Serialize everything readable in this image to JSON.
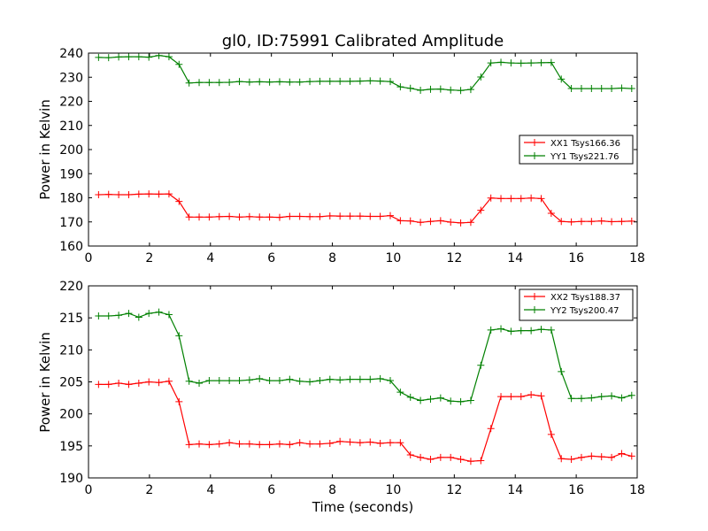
{
  "chart_data": [
    {
      "type": "line",
      "title": "gl0, ID:75991 Calibrated Amplitude",
      "xlabel": "",
      "ylabel": "Power in Kelvin",
      "xlim": [
        0,
        18
      ],
      "ylim": [
        160,
        240
      ],
      "xticks": [
        0,
        2,
        4,
        6,
        8,
        10,
        12,
        14,
        16,
        18
      ],
      "yticks": [
        160,
        170,
        180,
        190,
        200,
        210,
        220,
        230,
        240
      ],
      "legend_position": "center-right",
      "x": [
        0.33,
        0.66,
        0.99,
        1.32,
        1.65,
        1.98,
        2.31,
        2.64,
        2.97,
        3.3,
        3.63,
        3.96,
        4.29,
        4.62,
        4.95,
        5.28,
        5.61,
        5.94,
        6.27,
        6.6,
        6.93,
        7.26,
        7.59,
        7.92,
        8.25,
        8.58,
        8.91,
        9.24,
        9.57,
        9.9,
        10.23,
        10.56,
        10.89,
        11.22,
        11.55,
        11.88,
        12.21,
        12.54,
        12.87,
        13.2,
        13.53,
        13.86,
        14.19,
        14.52,
        14.85,
        15.18,
        15.51,
        15.84,
        16.17,
        16.5,
        16.83,
        17.16,
        17.49,
        17.82
      ],
      "series": [
        {
          "name": "XX1 Tsys166.36",
          "color": "#ff0000",
          "values": [
            181.3,
            181.4,
            181.3,
            181.3,
            181.5,
            181.6,
            181.5,
            181.6,
            178.5,
            172.0,
            172.0,
            172.0,
            172.2,
            172.3,
            172.0,
            172.2,
            172.0,
            172.0,
            171.9,
            172.3,
            172.3,
            172.2,
            172.2,
            172.5,
            172.4,
            172.4,
            172.4,
            172.3,
            172.3,
            172.6,
            170.5,
            170.4,
            169.8,
            170.2,
            170.5,
            169.9,
            169.6,
            169.8,
            174.8,
            179.9,
            179.7,
            179.7,
            179.7,
            179.9,
            179.7,
            173.6,
            170.2,
            170.0,
            170.2,
            170.2,
            170.4,
            170.1,
            170.2,
            170.3
          ]
        },
        {
          "name": "YY1 Tsys221.76",
          "color": "#008000",
          "values": [
            238.2,
            238.1,
            238.4,
            238.5,
            238.5,
            238.3,
            239.0,
            238.5,
            235.3,
            227.6,
            227.8,
            227.8,
            227.8,
            227.9,
            228.2,
            228.0,
            228.1,
            228.0,
            228.1,
            228.0,
            228.0,
            228.2,
            228.3,
            228.3,
            228.3,
            228.3,
            228.4,
            228.5,
            228.4,
            228.2,
            226.0,
            225.4,
            224.6,
            225.0,
            225.1,
            224.7,
            224.5,
            224.9,
            230.1,
            235.9,
            236.2,
            235.9,
            235.8,
            235.9,
            236.0,
            236.1,
            229.2,
            225.3,
            225.3,
            225.3,
            225.3,
            225.3,
            225.5,
            225.3
          ]
        }
      ]
    },
    {
      "type": "line",
      "title": "",
      "xlabel": "Time (seconds)",
      "ylabel": "Power in Kelvin",
      "xlim": [
        0,
        18
      ],
      "ylim": [
        190,
        220
      ],
      "xticks": [
        0,
        2,
        4,
        6,
        8,
        10,
        12,
        14,
        16,
        18
      ],
      "yticks": [
        190,
        195,
        200,
        205,
        210,
        215,
        220
      ],
      "legend_position": "top-right",
      "x": [
        0.33,
        0.66,
        0.99,
        1.32,
        1.65,
        1.98,
        2.31,
        2.64,
        2.97,
        3.3,
        3.63,
        3.96,
        4.29,
        4.62,
        4.95,
        5.28,
        5.61,
        5.94,
        6.27,
        6.6,
        6.93,
        7.26,
        7.59,
        7.92,
        8.25,
        8.58,
        8.91,
        9.24,
        9.57,
        9.9,
        10.23,
        10.56,
        10.89,
        11.22,
        11.55,
        11.88,
        12.21,
        12.54,
        12.87,
        13.2,
        13.53,
        13.86,
        14.19,
        14.52,
        14.85,
        15.18,
        15.51,
        15.84,
        16.17,
        16.5,
        16.83,
        17.16,
        17.49,
        17.82
      ],
      "series": [
        {
          "name": "XX2 Tsys188.37",
          "color": "#ff0000",
          "values": [
            204.6,
            204.6,
            204.8,
            204.6,
            204.8,
            205.0,
            204.9,
            205.1,
            201.9,
            195.2,
            195.3,
            195.2,
            195.3,
            195.5,
            195.3,
            195.3,
            195.2,
            195.2,
            195.3,
            195.2,
            195.5,
            195.3,
            195.3,
            195.4,
            195.7,
            195.6,
            195.5,
            195.6,
            195.4,
            195.5,
            195.5,
            193.6,
            193.2,
            192.9,
            193.2,
            193.2,
            192.9,
            192.6,
            192.7,
            197.7,
            202.7,
            202.7,
            202.7,
            203.0,
            202.8,
            196.8,
            193.0,
            192.9,
            193.2,
            193.4,
            193.3,
            193.2,
            193.8,
            193.4
          ]
        },
        {
          "name": "YY2 Tsys200.47",
          "color": "#008000",
          "values": [
            215.3,
            215.3,
            215.4,
            215.7,
            215.1,
            215.7,
            215.9,
            215.5,
            212.2,
            205.1,
            204.8,
            205.2,
            205.2,
            205.2,
            205.2,
            205.3,
            205.5,
            205.2,
            205.2,
            205.4,
            205.1,
            205.0,
            205.2,
            205.4,
            205.3,
            205.4,
            205.4,
            205.4,
            205.5,
            205.2,
            203.4,
            202.6,
            202.1,
            202.3,
            202.5,
            202.0,
            201.9,
            202.1,
            207.6,
            213.1,
            213.3,
            212.9,
            213.0,
            213.0,
            213.2,
            213.1,
            206.6,
            202.4,
            202.4,
            202.5,
            202.7,
            202.8,
            202.5,
            202.9
          ]
        }
      ]
    }
  ]
}
